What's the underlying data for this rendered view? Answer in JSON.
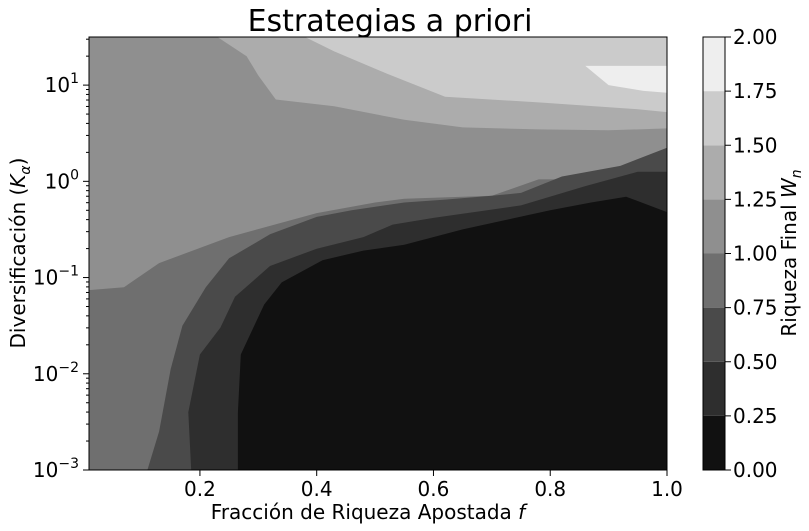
{
  "chart_data": {
    "type": "contourf",
    "title": "Estrategias a priori",
    "xlabel": "Fracción de Riqueza Apostada ",
    "xlabel_math": "f",
    "ylabel": "Diversificación (",
    "ylabel_math": "K",
    "ylabel_sub": "α",
    "ylabel_close": ")",
    "xlim": [
      0.01,
      1.0
    ],
    "ylim_log10": [
      -3,
      1.5
    ],
    "y_scale": "log",
    "x_ticks": [
      {
        "value": 0.2,
        "label": "0.2"
      },
      {
        "value": 0.4,
        "label": "0.4"
      },
      {
        "value": 0.6,
        "label": "0.6"
      },
      {
        "value": 0.8,
        "label": "0.8"
      },
      {
        "value": 1.0,
        "label": "1.0"
      }
    ],
    "y_ticks": [
      {
        "exp": -3,
        "base": "10",
        "sup": "−3"
      },
      {
        "exp": -2,
        "base": "10",
        "sup": "−2"
      },
      {
        "exp": -1,
        "base": "10",
        "sup": "−1"
      },
      {
        "exp": 0,
        "base": "10",
        "sup": "0"
      },
      {
        "exp": 1,
        "base": "10",
        "sup": "1"
      }
    ],
    "colorbar": {
      "label": "Riqueza Final ",
      "label_math": "W",
      "label_sub": "n",
      "levels": [
        0.0,
        0.25,
        0.5,
        0.75,
        1.0,
        1.25,
        1.5,
        1.75,
        2.0
      ],
      "tick_labels": [
        "0.00",
        "0.25",
        "0.50",
        "0.75",
        "1.00",
        "1.25",
        "1.50",
        "1.75",
        "2.00"
      ],
      "colors": [
        "#111111",
        "#2e2e2e",
        "#4a4a4a",
        "#6f6f6f",
        "#8f8f8f",
        "#acacac",
        "#cbcbcb",
        "#eeeeee"
      ]
    },
    "regions": [
      {
        "level_index": 3,
        "polygon": [
          [
            0.01,
            -3
          ],
          [
            1.0,
            -3
          ],
          [
            1.0,
            1.5
          ],
          [
            0.01,
            1.5
          ]
        ]
      },
      {
        "level_index": 4,
        "polygon": [
          [
            0.01,
            -1.13
          ],
          [
            0.07,
            -1.1
          ],
          [
            0.13,
            -0.85
          ],
          [
            0.25,
            -0.58
          ],
          [
            0.4,
            -0.33
          ],
          [
            0.5,
            -0.22
          ],
          [
            0.55,
            -0.18
          ],
          [
            0.7,
            -0.15
          ],
          [
            0.78,
            0.02
          ],
          [
            1.0,
            0.02
          ],
          [
            1.0,
            1.5
          ],
          [
            0.01,
            1.5
          ]
        ]
      },
      {
        "level_index": 2,
        "polygon": [
          [
            0.11,
            -3
          ],
          [
            0.13,
            -2.6
          ],
          [
            0.15,
            -1.95
          ],
          [
            0.17,
            -1.5
          ],
          [
            0.21,
            -1.1
          ],
          [
            0.25,
            -0.8
          ],
          [
            0.32,
            -0.55
          ],
          [
            0.4,
            -0.37
          ],
          [
            0.46,
            -0.3
          ],
          [
            0.55,
            -0.22
          ],
          [
            0.62,
            -0.19
          ],
          [
            0.7,
            -0.15
          ],
          [
            0.75,
            -0.12
          ],
          [
            0.82,
            0.05
          ],
          [
            0.92,
            0.16
          ],
          [
            1.0,
            0.35
          ],
          [
            1.0,
            -3
          ]
        ]
      },
      {
        "level_index": 1,
        "polygon": [
          [
            0.185,
            -3
          ],
          [
            0.18,
            -2.4
          ],
          [
            0.2,
            -1.8
          ],
          [
            0.235,
            -1.52
          ],
          [
            0.26,
            -1.2
          ],
          [
            0.32,
            -0.88
          ],
          [
            0.4,
            -0.7
          ],
          [
            0.48,
            -0.58
          ],
          [
            0.53,
            -0.45
          ],
          [
            0.6,
            -0.38
          ],
          [
            0.75,
            -0.25
          ],
          [
            0.86,
            -0.05
          ],
          [
            0.95,
            0.1
          ],
          [
            1.0,
            0.1
          ],
          [
            1.0,
            -3
          ]
        ]
      },
      {
        "level_index": 0,
        "polygon": [
          [
            0.265,
            -3
          ],
          [
            0.265,
            -2.4
          ],
          [
            0.27,
            -1.8
          ],
          [
            0.31,
            -1.28
          ],
          [
            0.34,
            -1.05
          ],
          [
            0.41,
            -0.82
          ],
          [
            0.48,
            -0.72
          ],
          [
            0.55,
            -0.66
          ],
          [
            0.65,
            -0.5
          ],
          [
            0.74,
            -0.38
          ],
          [
            0.8,
            -0.3
          ],
          [
            0.87,
            -0.22
          ],
          [
            0.93,
            -0.16
          ],
          [
            1.0,
            -0.32
          ],
          [
            1.0,
            -3
          ]
        ]
      },
      {
        "level_index": 5,
        "polygon": [
          [
            0.23,
            1.5
          ],
          [
            0.28,
            1.3
          ],
          [
            0.3,
            1.1
          ],
          [
            0.33,
            0.85
          ],
          [
            0.43,
            0.78
          ],
          [
            0.55,
            0.64
          ],
          [
            0.65,
            0.56
          ],
          [
            0.78,
            0.54
          ],
          [
            0.9,
            0.53
          ],
          [
            1.0,
            0.55
          ],
          [
            1.0,
            1.5
          ]
        ]
      },
      {
        "level_index": 6,
        "polygon": [
          [
            0.38,
            1.5
          ],
          [
            0.43,
            1.35
          ],
          [
            0.52,
            1.12
          ],
          [
            0.62,
            0.88
          ],
          [
            0.78,
            0.82
          ],
          [
            0.95,
            0.75
          ],
          [
            1.0,
            0.72
          ],
          [
            1.0,
            1.5
          ]
        ]
      },
      {
        "level_index": 7,
        "polygon": [
          [
            0.86,
            1.2
          ],
          [
            0.9,
            1.0
          ],
          [
            0.96,
            0.94
          ],
          [
            1.0,
            0.92
          ],
          [
            1.0,
            1.2
          ]
        ]
      }
    ]
  }
}
